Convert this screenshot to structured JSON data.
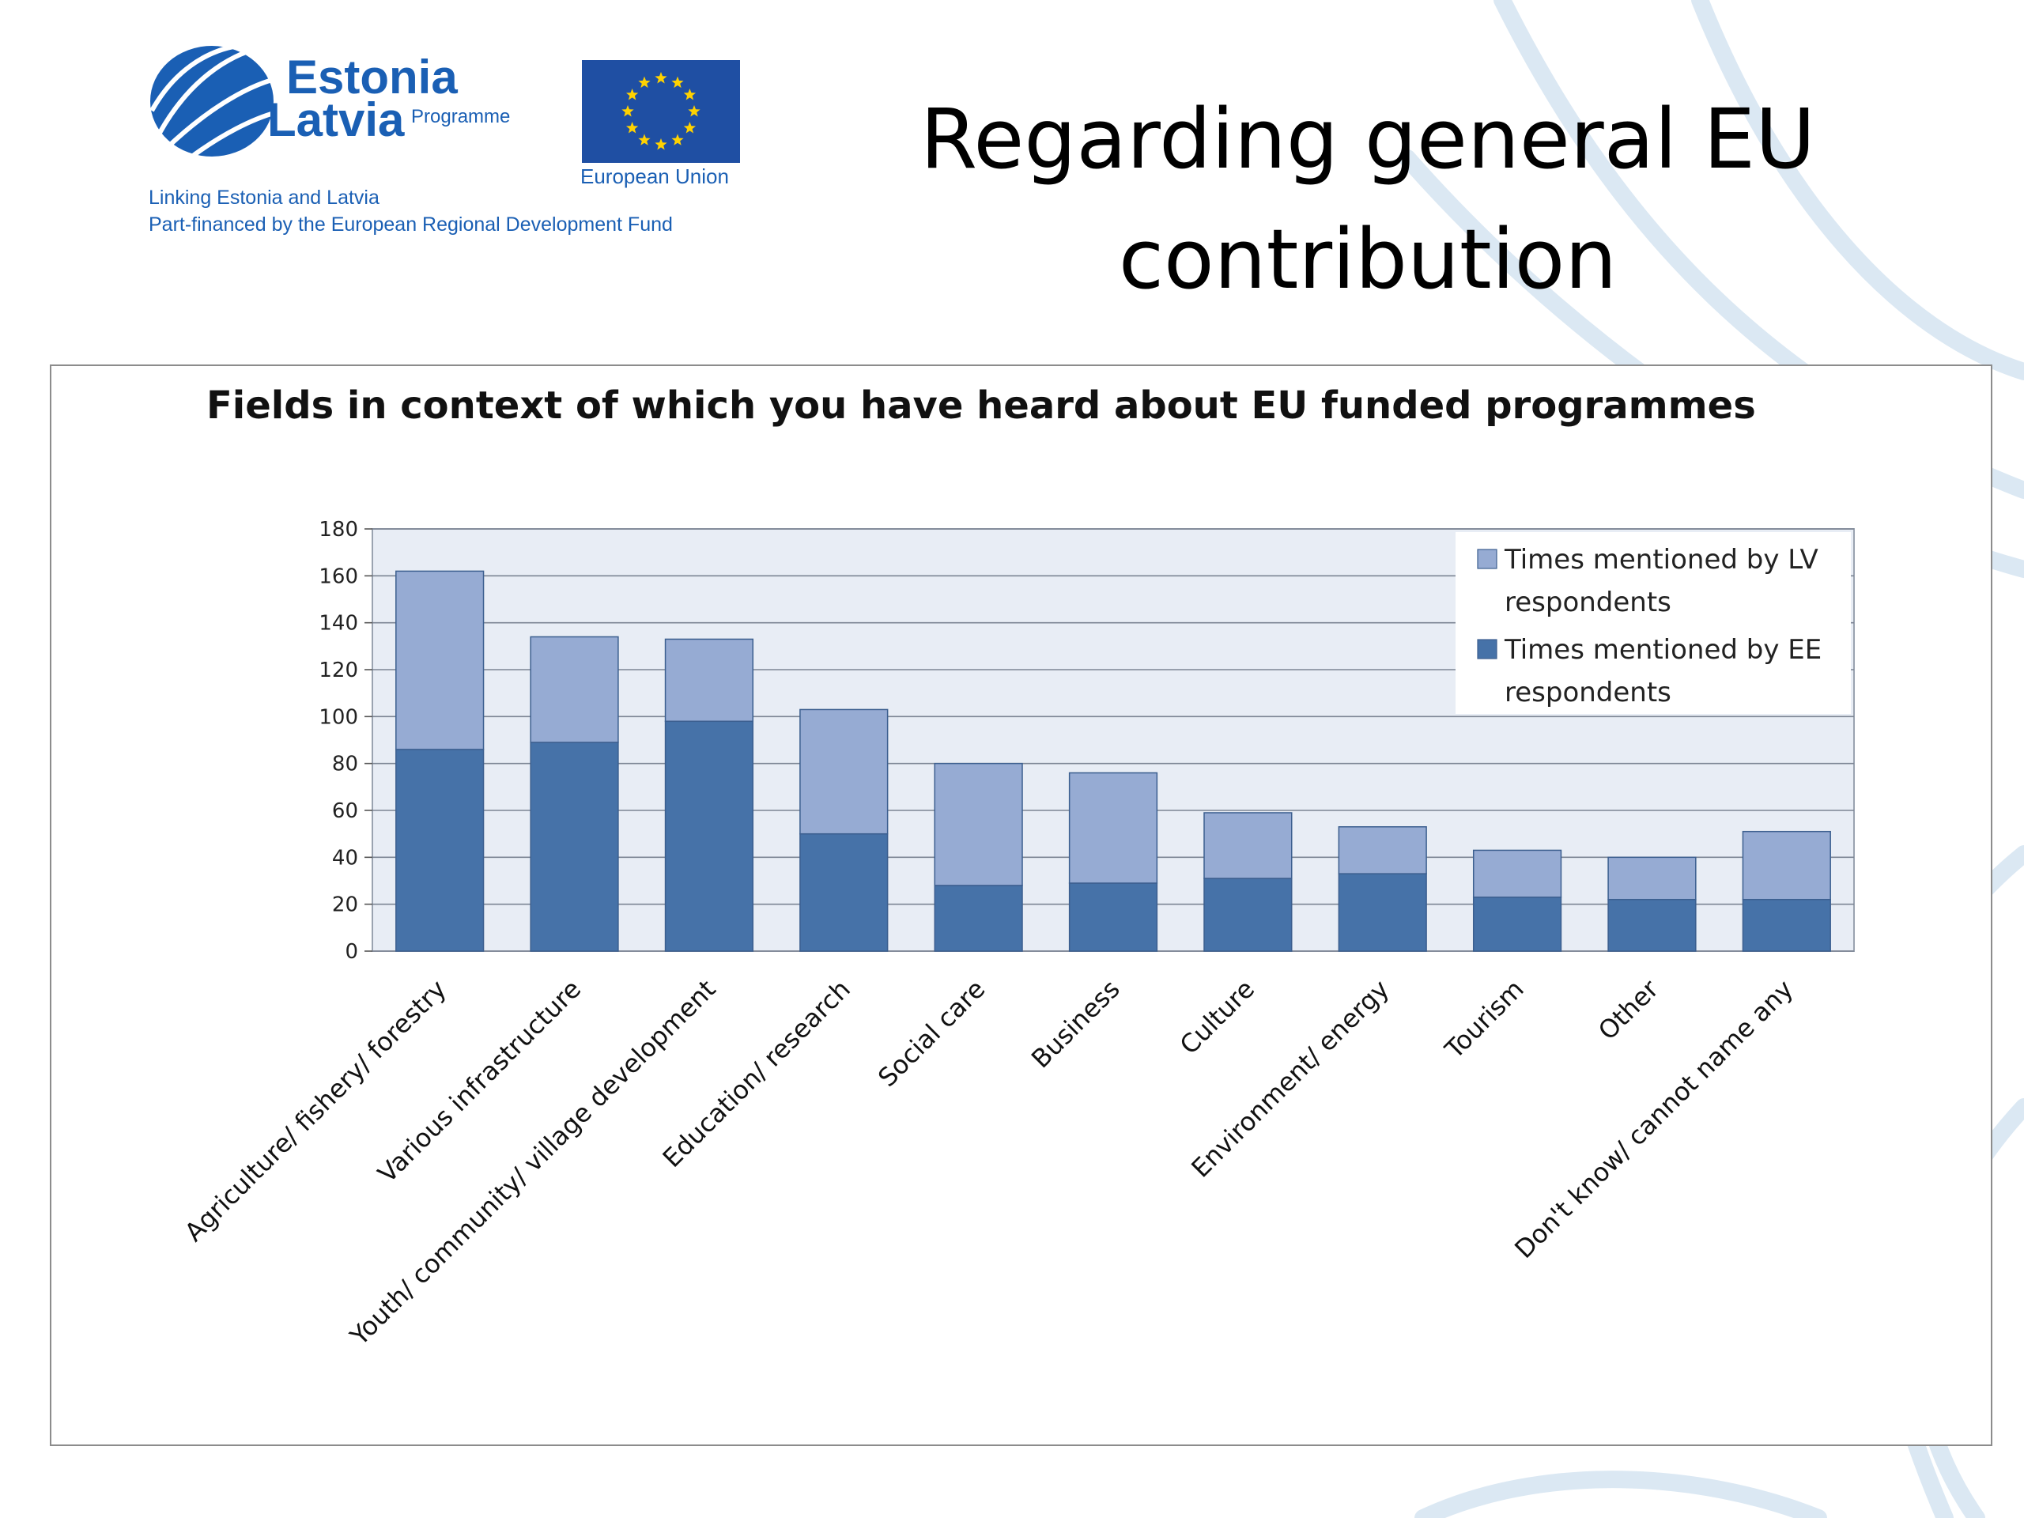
{
  "logo": {
    "programme_name_line1": "Estonia",
    "programme_name_line2": "Latvia",
    "programme_word": "Programme",
    "eu_label": "European Union",
    "tagline_line1": "Linking Estonia and Latvia",
    "tagline_line2": "Part-financed by the European Regional Development Fund"
  },
  "slide": {
    "title_line1": "Regarding general EU",
    "title_line2": "contribution"
  },
  "colors": {
    "ee": "#4672a8",
    "lv": "#96abd3",
    "plot_bg": "#e8edf5",
    "logo_blue": "#1a5fb4",
    "eu_blue": "#1f4fa3",
    "eu_star": "#ffd200"
  },
  "chart_data": {
    "type": "bar",
    "stacked": true,
    "title": "Fields in context of which you have heard about EU funded programmes",
    "categories": [
      "Agriculture/ fishery/ forestry",
      "Various infrastructure",
      "Youth/ community/ village development",
      "Education/ research",
      "Social care",
      "Business",
      "Culture",
      "Environment/ energy",
      "Tourism",
      "Other",
      "Don't know/ cannot name any"
    ],
    "series": [
      {
        "name": "Times mentioned by EE respondents",
        "values": [
          86,
          89,
          98,
          50,
          28,
          29,
          31,
          33,
          23,
          22,
          22
        ]
      },
      {
        "name": "Times mentioned by LV respondents",
        "values": [
          76,
          45,
          35,
          53,
          52,
          47,
          28,
          20,
          20,
          18,
          29
        ]
      }
    ],
    "legend_order": [
      "Times mentioned by LV respondents",
      "Times mentioned by EE respondents"
    ],
    "y_ticks": [
      0,
      20,
      40,
      60,
      80,
      100,
      120,
      140,
      160,
      180
    ],
    "ylim": [
      0,
      180
    ],
    "grid": true,
    "legend_position": "top-right"
  }
}
